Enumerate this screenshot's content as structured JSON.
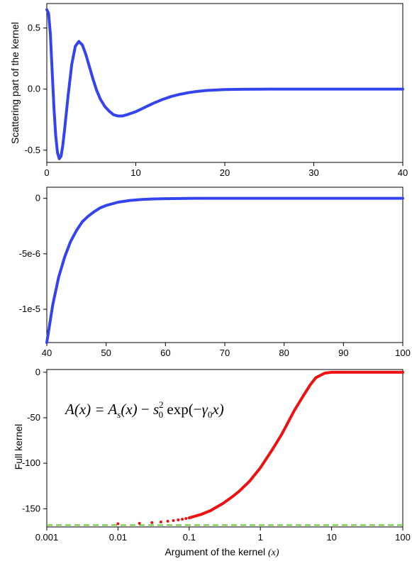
{
  "colors": {
    "blue_curve": "#3344ee",
    "red_curve": "#ee1111",
    "green_dash": "#66cc33",
    "frame": "#000000"
  },
  "chart_data": [
    {
      "type": "line",
      "ylabel": "Scattering part of the kernel",
      "xlabel": "",
      "xlim": [
        0,
        40
      ],
      "ylim": [
        -0.6,
        0.7
      ],
      "xticks": [
        "0",
        "10",
        "20",
        "30",
        "40"
      ],
      "yticks": [
        "0.5",
        "0.0",
        "-0.5"
      ],
      "series": [
        {
          "x": [
            0,
            0.2,
            0.4,
            0.6,
            0.8,
            1.0,
            1.2,
            1.4,
            1.6,
            1.8,
            2.0,
            2.4,
            2.8,
            3.2,
            3.6,
            4.0,
            4.4,
            4.8,
            5.2,
            5.6,
            6.0,
            6.5,
            7.0,
            7.5,
            8.0,
            8.5,
            9.0,
            10,
            11,
            12,
            13,
            14,
            15,
            16,
            17,
            18,
            19,
            20,
            22,
            24,
            26,
            28,
            30,
            35,
            40
          ],
          "y": [
            0.65,
            0.62,
            0.45,
            0.15,
            -0.15,
            -0.38,
            -0.52,
            -0.57,
            -0.55,
            -0.46,
            -0.33,
            -0.05,
            0.2,
            0.35,
            0.39,
            0.36,
            0.28,
            0.18,
            0.08,
            -0.01,
            -0.08,
            -0.14,
            -0.18,
            -0.21,
            -0.22,
            -0.22,
            -0.21,
            -0.185,
            -0.15,
            -0.115,
            -0.085,
            -0.06,
            -0.042,
            -0.028,
            -0.018,
            -0.011,
            -0.007,
            -0.004,
            -0.0015,
            -0.0005,
            0,
            0,
            0,
            0,
            0
          ]
        }
      ]
    },
    {
      "type": "line",
      "xlabel": "",
      "ylabel": "",
      "xlim": [
        40,
        100
      ],
      "ylim": [
        -1.3e-05,
        1e-06
      ],
      "xticks": [
        "40",
        "50",
        "60",
        "70",
        "80",
        "90",
        "100"
      ],
      "yticks": [
        "0",
        "-5e-6",
        "-1e-5"
      ],
      "series": [
        {
          "x": [
            40,
            41,
            42,
            43,
            44,
            45,
            46,
            47,
            48,
            49,
            50,
            52,
            54,
            56,
            58,
            60,
            65,
            70,
            80,
            90,
            100
          ],
          "y": [
            -1.3e-05,
            -9.6e-06,
            -7.1e-06,
            -5.3e-06,
            -3.9e-06,
            -2.9e-06,
            -2.1e-06,
            -1.6e-06,
            -1.2e-06,
            -8.6e-07,
            -6.4e-07,
            -3.5e-07,
            -1.9e-07,
            -1e-07,
            -5.6e-08,
            -3.1e-08,
            0,
            0,
            0,
            0,
            0
          ]
        }
      ]
    },
    {
      "type": "line",
      "xlabel_text": "Argument of the kernel",
      "xlabel_var": "(x)",
      "ylabel": "Full kernel",
      "xscale": "log",
      "xlim": [
        0.001,
        100
      ],
      "ylim": [
        -170,
        3
      ],
      "xticks": [
        "0.001",
        "0.01",
        "0.1",
        "1",
        "10",
        "100"
      ],
      "yticks": [
        "0",
        "-50",
        "-100",
        "-150"
      ],
      "equation": {
        "lhs": "A(x) = ",
        "a": "A",
        "s": "s",
        "x": "(x)",
        "minus": " − ",
        "s0": "s",
        "zero": "0",
        "two": "2",
        "exp": " exp(−",
        "gamma": "γ",
        "gzero": "0",
        "xend": "x)"
      },
      "series": [
        {
          "name": "",
          "style": "dots",
          "x": [
            0.01,
            0.02,
            0.03,
            0.04,
            0.05,
            0.06,
            0.07,
            0.08,
            0.09
          ],
          "y": [
            -166.5,
            -166,
            -165.2,
            -164.5,
            -163.7,
            -163,
            -162.2,
            -161.5,
            -160.7
          ]
        },
        {
          "name": "",
          "style": "line",
          "x": [
            0.1,
            0.15,
            0.2,
            0.3,
            0.4,
            0.5,
            0.7,
            1.0,
            1.5,
            2.0,
            3.0,
            4.0,
            5.0,
            6.0,
            8.0,
            10,
            20,
            50,
            100
          ],
          "y": [
            -160,
            -156,
            -152,
            -144,
            -137,
            -131,
            -120,
            -105,
            -84,
            -68,
            -42,
            -26,
            -14,
            -6,
            -1,
            0,
            0,
            0,
            0
          ]
        },
        {
          "name": "",
          "style": "dashed-hline",
          "y": -168
        }
      ]
    }
  ]
}
